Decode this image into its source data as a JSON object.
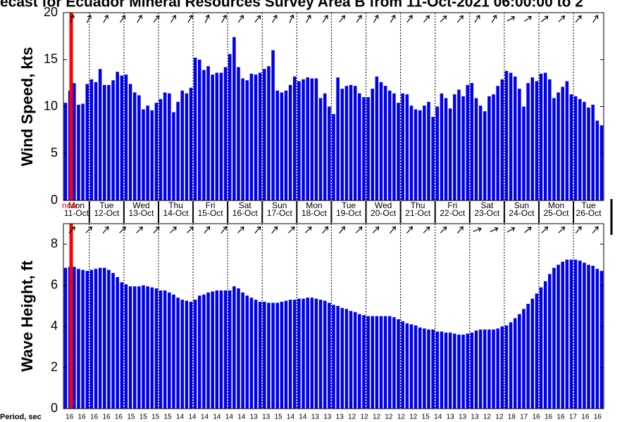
{
  "header": {
    "title": "ecast for Ecuador Mineral Resources Survey Area B from 11-Oct-2021 06:00:00 to 2",
    "now_label": "now",
    "period_label": "Period, sec"
  },
  "days": [
    {
      "name": "Mon",
      "date": "11-Oct"
    },
    {
      "name": "Tue",
      "date": "12-Oct"
    },
    {
      "name": "Wed",
      "date": "13-Oct"
    },
    {
      "name": "Thu",
      "date": "14-Oct"
    },
    {
      "name": "Fri",
      "date": "15-Oct"
    },
    {
      "name": "Sat",
      "date": "16-Oct"
    },
    {
      "name": "Sun",
      "date": "17-Oct"
    },
    {
      "name": "Mon",
      "date": "18-Oct"
    },
    {
      "name": "Tue",
      "date": "19-Oct"
    },
    {
      "name": "Wed",
      "date": "20-Oct"
    },
    {
      "name": "Thu",
      "date": "21-Oct"
    },
    {
      "name": "Fri",
      "date": "22-Oct"
    },
    {
      "name": "Sat",
      "date": "23-Oct"
    },
    {
      "name": "Sun",
      "date": "24-Oct"
    },
    {
      "name": "Mon",
      "date": "25-Oct"
    },
    {
      "name": "Tue",
      "date": "26-Oct"
    }
  ],
  "periods": [
    16,
    16,
    16,
    16,
    16,
    15,
    15,
    15,
    15,
    14,
    14,
    14,
    14,
    14,
    14,
    13,
    13,
    15,
    14,
    14,
    13,
    13,
    13,
    12,
    12,
    12,
    12,
    12,
    12,
    15,
    14,
    13,
    13,
    13,
    12,
    12,
    18,
    17,
    16,
    16,
    16,
    17,
    16,
    16
  ],
  "chart_data": [
    {
      "type": "bar",
      "ylabel": "Wind Speed, kts",
      "color": "#0000ee",
      "ylim": [
        0,
        20
      ],
      "yticks": [
        0,
        5,
        10,
        15,
        20
      ],
      "values": [
        10.4,
        11.7,
        12.5,
        10.2,
        10.3,
        12.4,
        12.9,
        12.6,
        14.0,
        12.3,
        12.3,
        12.8,
        13.7,
        13.3,
        13.4,
        12.4,
        11.5,
        11.2,
        9.7,
        10.1,
        9.6,
        10.4,
        10.8,
        11.5,
        11.4,
        9.4,
        10.5,
        11.7,
        11.4,
        12.0,
        15.2,
        15.0,
        13.9,
        14.3,
        13.4,
        13.6,
        13.6,
        14.2,
        15.6,
        17.4,
        14.2,
        13.0,
        12.8,
        13.5,
        13.4,
        13.6,
        14.0,
        14.3,
        16.0,
        11.7,
        11.5,
        11.7,
        12.3,
        13.2,
        12.7,
        12.9,
        13.1,
        13.0,
        13.0,
        10.9,
        11.4,
        10.0,
        9.2,
        13.1,
        11.9,
        12.2,
        12.3,
        12.2,
        11.4,
        11.0,
        11.0,
        11.9,
        13.2,
        12.6,
        12.2,
        11.7,
        11.4,
        10.4,
        11.4,
        11.3,
        10.1,
        9.7,
        9.6,
        10.1,
        10.5,
        8.9,
        10.0,
        11.4,
        10.9,
        9.8,
        11.3,
        11.8,
        11.1,
        12.3,
        12.5,
        10.9,
        10.1,
        9.5,
        11.1,
        11.3,
        12.2,
        12.9,
        13.8,
        13.6,
        13.2,
        11.9,
        10.0,
        12.5,
        13.1,
        12.7,
        13.5,
        13.6,
        12.9,
        10.9,
        11.5,
        12.1,
        12.7,
        11.3,
        11.1,
        10.8,
        10.5,
        9.9,
        10.2,
        8.5,
        8.0
      ],
      "directions": [
        20,
        25,
        30,
        35,
        30,
        40,
        35,
        30,
        25,
        30,
        35,
        40,
        30,
        25,
        30,
        35,
        40,
        35,
        30,
        30,
        35,
        40,
        45,
        40,
        35,
        30,
        60,
        55,
        50,
        45,
        40,
        35
      ]
    },
    {
      "type": "bar",
      "ylabel": "Wave Height, ft",
      "color": "#0000ee",
      "ylim": [
        0,
        9
      ],
      "yticks": [
        0,
        2,
        4,
        6,
        8
      ],
      "values": [
        6.85,
        6.9,
        6.9,
        6.8,
        6.75,
        6.7,
        6.75,
        6.8,
        6.85,
        6.85,
        6.75,
        6.6,
        6.4,
        6.15,
        6.05,
        5.95,
        5.95,
        5.95,
        6.0,
        5.95,
        5.9,
        5.85,
        5.75,
        5.75,
        5.65,
        5.55,
        5.4,
        5.3,
        5.25,
        5.2,
        5.3,
        5.5,
        5.55,
        5.65,
        5.7,
        5.75,
        5.75,
        5.75,
        5.75,
        5.95,
        5.85,
        5.65,
        5.5,
        5.4,
        5.3,
        5.2,
        5.2,
        5.15,
        5.15,
        5.15,
        5.2,
        5.25,
        5.3,
        5.3,
        5.35,
        5.35,
        5.4,
        5.4,
        5.35,
        5.3,
        5.25,
        5.15,
        5.05,
        5.0,
        4.9,
        4.85,
        4.75,
        4.7,
        4.6,
        4.55,
        4.5,
        4.5,
        4.5,
        4.5,
        4.5,
        4.5,
        4.45,
        4.35,
        4.25,
        4.15,
        4.1,
        4.05,
        3.95,
        3.9,
        3.85,
        3.85,
        3.75,
        3.75,
        3.7,
        3.7,
        3.65,
        3.6,
        3.6,
        3.65,
        3.7,
        3.8,
        3.85,
        3.85,
        3.85,
        3.85,
        3.9,
        4.0,
        4.05,
        4.2,
        4.4,
        4.6,
        4.85,
        5.1,
        5.35,
        5.6,
        5.9,
        6.2,
        6.55,
        6.85,
        7.0,
        7.15,
        7.25,
        7.25,
        7.25,
        7.2,
        7.1,
        7.0,
        6.95,
        6.8,
        6.7
      ],
      "directions": [
        45,
        45,
        40,
        45,
        45,
        40,
        45,
        45,
        40,
        40,
        45,
        40,
        40,
        45,
        45,
        40,
        40,
        45,
        45,
        40,
        40,
        45,
        45,
        40,
        70,
        65,
        60,
        50,
        45,
        45,
        40,
        40
      ]
    }
  ]
}
